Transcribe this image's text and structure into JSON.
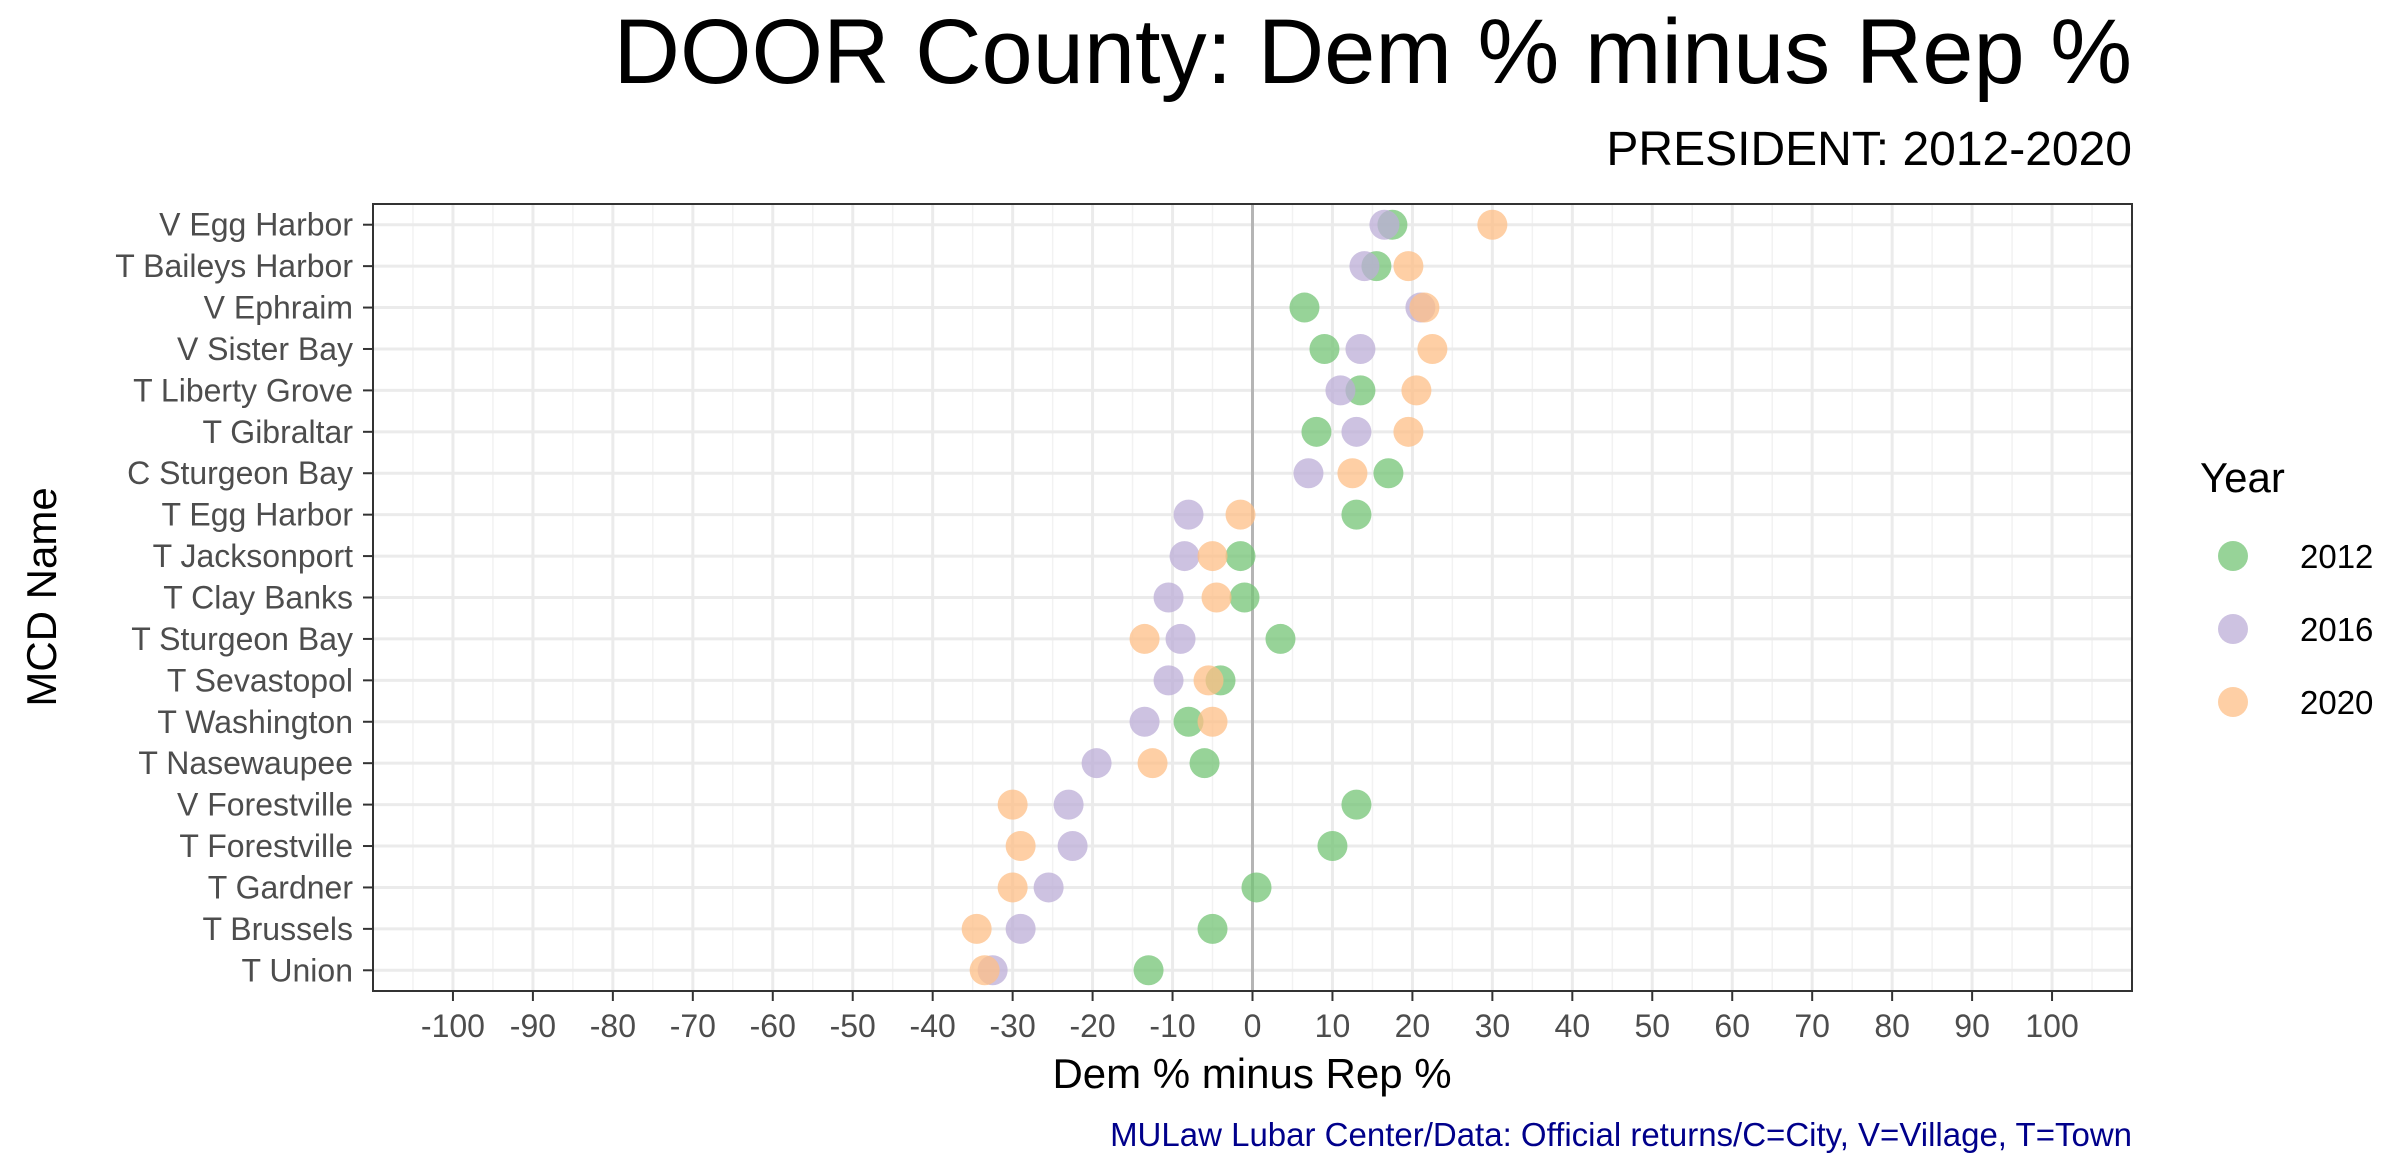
{
  "chart_data": {
    "type": "scatter",
    "title": "DOOR County: Dem % minus Rep %",
    "subtitle": "PRESIDENT: 2012-2020",
    "xlabel": "Dem % minus Rep %",
    "ylabel": "MCD Name",
    "caption": "MULaw Lubar Center/Data: Official returns/C=City, V=Village, T=Town",
    "xlim": [
      -110,
      110
    ],
    "xticks": [
      -100,
      -90,
      -80,
      -70,
      -60,
      -50,
      -40,
      -30,
      -20,
      -10,
      0,
      10,
      20,
      30,
      40,
      50,
      60,
      70,
      80,
      90,
      100
    ],
    "grid": true,
    "legend": {
      "title": "Year",
      "position": "right"
    },
    "categories": [
      "V Egg Harbor",
      "T Baileys Harbor",
      "V Ephraim",
      "V Sister Bay",
      "T Liberty Grove",
      "T Gibraltar",
      "C Sturgeon Bay",
      "T Egg Harbor",
      "T Jacksonport",
      "T Clay Banks",
      "T Sturgeon Bay",
      "T Sevastopol",
      "T Washington",
      "T Nasewaupee",
      "V Forestville",
      "T Forestville",
      "T Gardner",
      "T Brussels",
      "T Union"
    ],
    "series": [
      {
        "name": "2012",
        "color": "#74c476",
        "values": [
          17.5,
          15.5,
          6.5,
          9,
          13.5,
          8,
          17,
          13,
          -1.5,
          -1,
          3.5,
          -4,
          -8,
          -6,
          13,
          10,
          0.5,
          -5,
          -13
        ]
      },
      {
        "name": "2016",
        "color": "#bcaed7",
        "values": [
          16.5,
          14,
          21,
          13.5,
          11,
          13,
          7,
          -8,
          -8.5,
          -10.5,
          -9,
          -10.5,
          -13.5,
          -19.5,
          -23,
          -22.5,
          -25.5,
          -29,
          -32.5
        ]
      },
      {
        "name": "2020",
        "color": "#fdbf87",
        "values": [
          30,
          19.5,
          21.5,
          22.5,
          20.5,
          19.5,
          12.5,
          -1.5,
          -5,
          -4.5,
          -13.5,
          -5.5,
          -5,
          -12.5,
          -30,
          -29,
          -30,
          -34.5,
          -33.5
        ]
      }
    ]
  }
}
